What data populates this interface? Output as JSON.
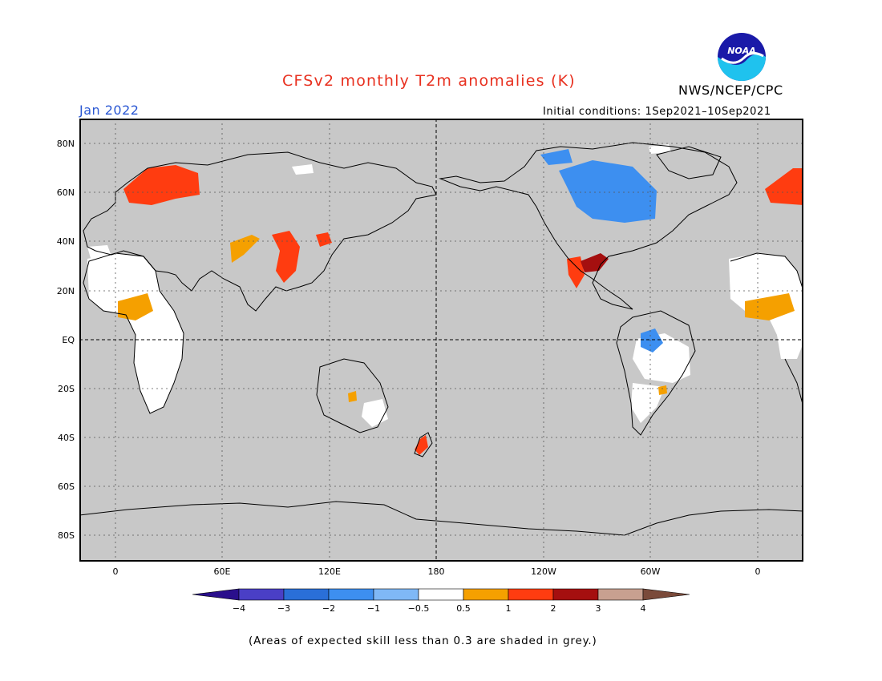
{
  "header": {
    "title": "CFSv2 monthly T2m anomalies (K)",
    "month": "Jan 2022",
    "initial_conditions": "Initial conditions: 1Sep2021–10Sep2021",
    "agency": "NWS/NCEP/CPC",
    "logo_text": "NOAA"
  },
  "map": {
    "lat_labels": [
      "80N",
      "60N",
      "40N",
      "20N",
      "EQ",
      "20S",
      "40S",
      "60S",
      "80S"
    ],
    "lon_labels": [
      "0",
      "60E",
      "120E",
      "180",
      "120W",
      "60W",
      "0"
    ],
    "background_color": "#c8c8c8",
    "anomaly_regions": [
      {
        "name": "Scandinavia",
        "anomaly": "1 to 2"
      },
      {
        "name": "West Africa / Sahel",
        "anomaly": "0.5 to 1"
      },
      {
        "name": "Eastern China",
        "anomaly": "1 to 2"
      },
      {
        "name": "Southern United States",
        "anomaly": "2 to 3"
      },
      {
        "name": "Canada / Hudson Bay",
        "anomaly": "-1 to -0.5"
      },
      {
        "name": "Amazon",
        "anomaly": "-1 to -0.5"
      },
      {
        "name": "New Zealand",
        "anomaly": "1 to 2"
      }
    ]
  },
  "colorbar": {
    "tick_labels": [
      "−4",
      "−3",
      "−2",
      "−1",
      "−0.5",
      "0.5",
      "1",
      "2",
      "3",
      "4"
    ],
    "colors": [
      "#2a0f8c",
      "#4a3fc6",
      "#2a6fd8",
      "#3d8ff0",
      "#7fb8f6",
      "#ffffff",
      "#f5a000",
      "#ff3c10",
      "#a50f0f",
      "#c8a090",
      "#7a4a3a"
    ]
  },
  "footnote": "(Areas of expected skill less than 0.3 are shaded in grey.)"
}
